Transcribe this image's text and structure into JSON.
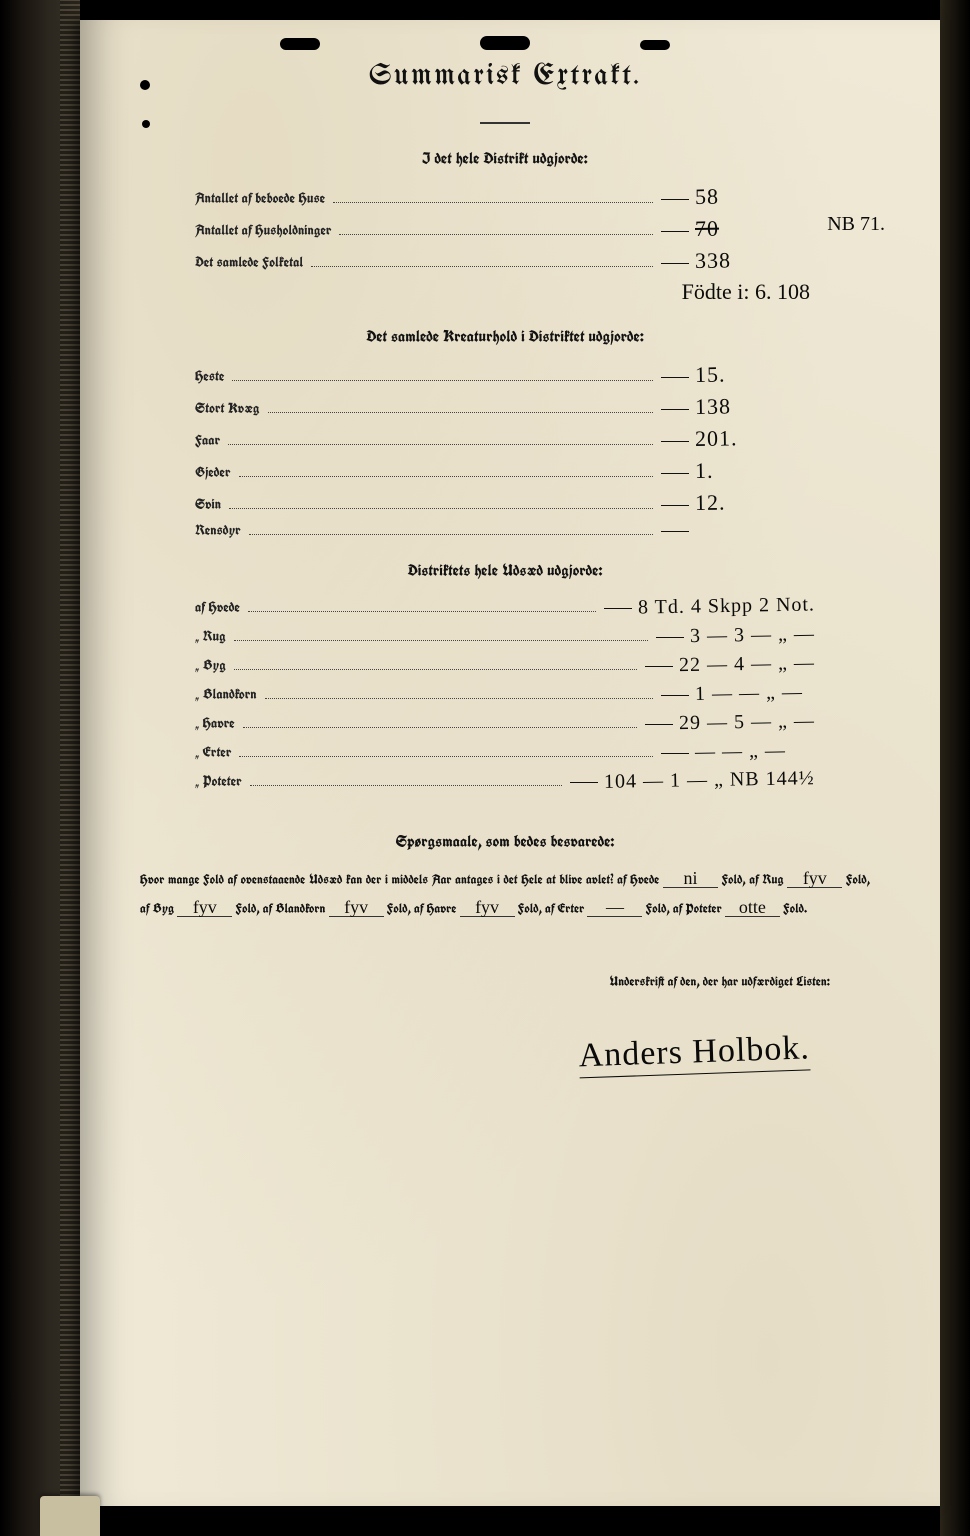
{
  "page": {
    "title": "Summarisk Extrakt.",
    "background_color": "#efe9d6",
    "ink_color": "#0b0b0b",
    "print_color": "#111111"
  },
  "section1": {
    "heading": "I det hele Distrikt udgjorde:",
    "rows": [
      {
        "label": "Antallet af beboede Huse",
        "value": "58"
      },
      {
        "label": "Antallet af Husholdninger",
        "value": "70",
        "annotation": "NB 71."
      },
      {
        "label": "Det samlede Folketal",
        "value": "338"
      }
    ],
    "extra_handwriting": "Födte i: 6. 108"
  },
  "section2": {
    "heading": "Det samlede Kreaturhold i Distriktet udgjorde:",
    "rows": [
      {
        "label": "Heste",
        "value": "15."
      },
      {
        "label": "Stort Kvæg",
        "value": "138"
      },
      {
        "label": "Faar",
        "value": "201."
      },
      {
        "label": "Gjeder",
        "value": "1."
      },
      {
        "label": "Svin",
        "value": "12."
      },
      {
        "label": "Rensdyr",
        "value": ""
      }
    ]
  },
  "section3": {
    "heading": "Distriktets hele Udsæd udgjorde:",
    "rows": [
      {
        "label": "af Hvede",
        "value": "8 Td. 4 Skpp 2 Not."
      },
      {
        "label": "„ Rug",
        "value": "3 — 3 — „ —"
      },
      {
        "label": "„ Byg",
        "value": "22 — 4 — „ —"
      },
      {
        "label": "„ Blandkorn",
        "value": "1 — — „ —"
      },
      {
        "label": "„ Havre",
        "value": "29 — 5 — „ —"
      },
      {
        "label": "„ Erter",
        "value": "— — „ —"
      },
      {
        "label": "„ Poteter",
        "value": "104 — 1 — „  NB 144½"
      }
    ]
  },
  "questions": {
    "heading": "Spørgsmaale, som bedes besvarede:",
    "prompt_prefix": "Hvor mange Fold af ovenstaaende Udsæd kan der i middels Aar antages i det Hele at blive avlet?",
    "items": [
      {
        "crop": "af Hvede",
        "answer": "ni",
        "suffix": "Fold,"
      },
      {
        "crop": "af Rug",
        "answer": "fyv",
        "suffix": "Fold,"
      },
      {
        "crop": "af Byg",
        "answer": "fyv",
        "suffix": "Fold,"
      },
      {
        "crop": "af Blandkorn",
        "answer": "fyv",
        "suffix": "Fold,"
      },
      {
        "crop": "af Havre",
        "answer": "fyv",
        "suffix": "Fold,"
      },
      {
        "crop": "af Erter",
        "answer": "—",
        "suffix": "Fold,"
      },
      {
        "crop": "af Poteter",
        "answer": "otte",
        "suffix": "Fold."
      }
    ]
  },
  "signature": {
    "caption": "Underskrift af den, der har udfærdiget Listen:",
    "name": "Anders Holbok."
  }
}
